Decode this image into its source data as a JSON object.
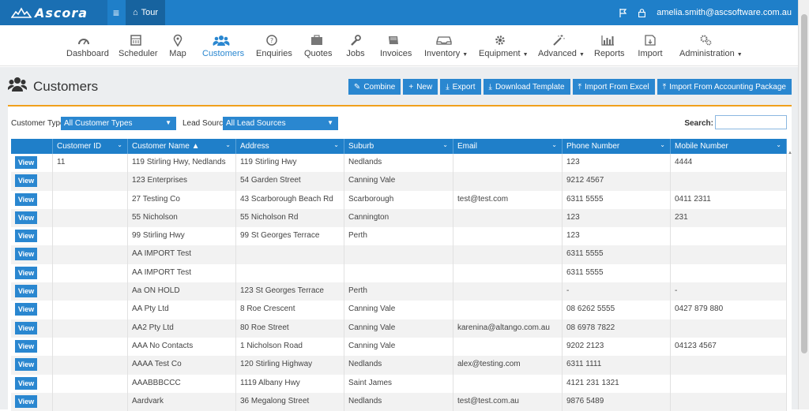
{
  "topbar": {
    "logo": "Ascora",
    "tour_label": "Tour",
    "user_email": "amelia.smith@ascsoftware.com.au"
  },
  "nav": [
    {
      "label": "Dashboard",
      "icon": "dashboard-icon",
      "caret": ""
    },
    {
      "label": "Scheduler",
      "icon": "calendar-icon",
      "caret": ""
    },
    {
      "label": "Map",
      "icon": "map-pin-icon",
      "caret": ""
    },
    {
      "label": "Customers",
      "icon": "users-icon",
      "caret": ""
    },
    {
      "label": "Enquiries",
      "icon": "question-icon",
      "caret": ""
    },
    {
      "label": "Quotes",
      "icon": "briefcase-icon",
      "caret": ""
    },
    {
      "label": "Jobs",
      "icon": "wrench-icon",
      "caret": ""
    },
    {
      "label": "Invoices",
      "icon": "book-icon",
      "caret": ""
    },
    {
      "label": "Inventory",
      "icon": "inbox-icon",
      "caret": "▼"
    },
    {
      "label": "Equipment",
      "icon": "gear-icon",
      "caret": "▼"
    },
    {
      "label": "Advanced",
      "icon": "magic-wand-icon",
      "caret": "▼"
    },
    {
      "label": "Reports",
      "icon": "bar-chart-icon",
      "caret": ""
    },
    {
      "label": "Import",
      "icon": "import-icon",
      "caret": ""
    },
    {
      "label": "Administration",
      "icon": "gears-icon",
      "caret": "▼"
    }
  ],
  "page": {
    "title": "Customers",
    "actions": {
      "combine": "Combine",
      "new": "New",
      "export": "Export",
      "download_template": "Download Template",
      "import_excel": "Import From Excel",
      "import_accounting": "Import From Accounting Package"
    }
  },
  "filters": {
    "customer_type_label": "Customer Type:",
    "customer_type_value": "All Customer Types",
    "lead_source_label": "Lead Source:",
    "lead_source_value": "All Lead Sources",
    "search_label": "Search:",
    "search_value": ""
  },
  "table": {
    "headers": [
      "",
      "Customer ID",
      "Customer Name ▲",
      "Address",
      "Suburb",
      "Email",
      "Phone Number",
      "Mobile Number"
    ],
    "view_label": "View",
    "rows": [
      [
        "11",
        "119 Stirling Hwy, Nedlands",
        "119 Stirling Hwy",
        "Nedlands",
        "",
        "123",
        "4444"
      ],
      [
        "",
        "123 Enterprises",
        "54 Garden Street",
        "Canning Vale",
        "",
        "9212 4567",
        ""
      ],
      [
        "",
        "27 Testing Co",
        "43 Scarborough Beach Rd",
        "Scarborough",
        "test@test.com",
        "6311 5555",
        "0411 2311"
      ],
      [
        "",
        "55 Nicholson",
        "55 Nicholson Rd",
        "Cannington",
        "",
        "123",
        "231"
      ],
      [
        "",
        "99 Stirling Hwy",
        "99 St Georges Terrace",
        "Perth",
        "",
        "123",
        ""
      ],
      [
        "",
        "AA IMPORT Test",
        "",
        "",
        "",
        "6311 5555",
        ""
      ],
      [
        "",
        "AA IMPORT Test",
        "",
        "",
        "",
        "6311 5555",
        ""
      ],
      [
        "",
        "Aa ON HOLD",
        "123 St Georges Terrace",
        "Perth",
        "",
        "-",
        "-"
      ],
      [
        "",
        "AA Pty Ltd",
        "8 Roe Crescent",
        "Canning Vale",
        "",
        "08 6262 5555",
        "0427 879 880"
      ],
      [
        "",
        "AA2 Pty Ltd",
        "80 Roe Street",
        "Canning Vale",
        "karenina@altango.com.au",
        "08 6978 7822",
        ""
      ],
      [
        "",
        "AAA No Contacts",
        "1 Nicholson Road",
        "Canning Vale",
        "",
        "9202 2123",
        "04123 4567"
      ],
      [
        "",
        "AAAA Test Co",
        "120 Stirling Highway",
        "Nedlands",
        "alex@testing.com",
        "6311 1111",
        ""
      ],
      [
        "",
        "AAABBBCCC",
        "1119 Albany Hwy",
        "Saint James",
        "",
        "4121 231 1321",
        ""
      ],
      [
        "",
        "Aardvark",
        "36 Megalong Street",
        "Nedlands",
        "test@test.com.au",
        "9876 5489",
        ""
      ]
    ]
  }
}
